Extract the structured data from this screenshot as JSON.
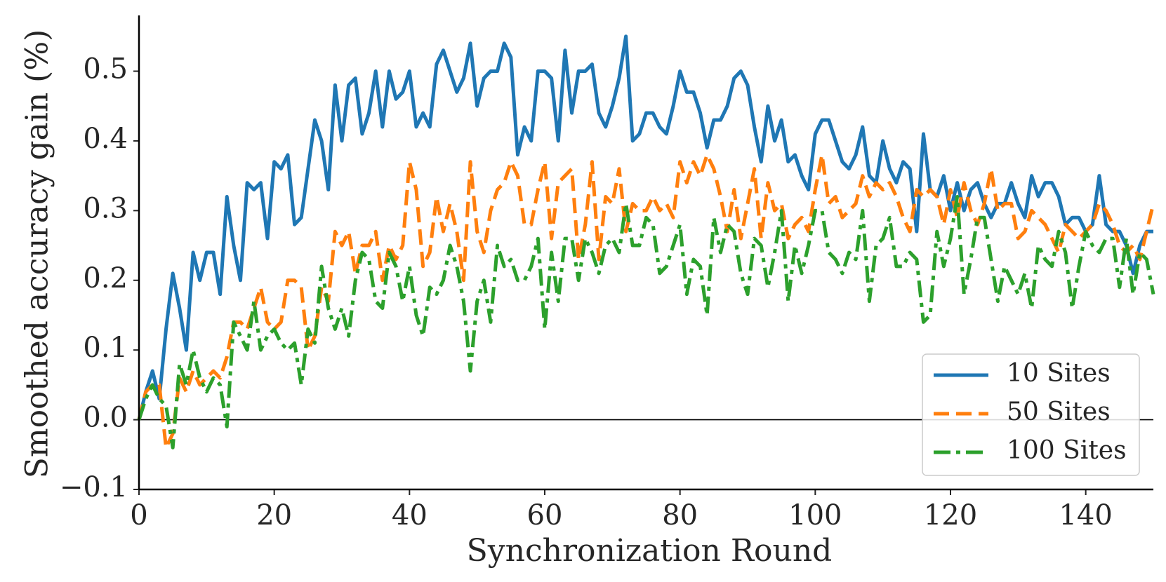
{
  "chart_data": {
    "type": "line",
    "title": "",
    "xlabel": "Synchronization Round",
    "ylabel": "Smoothed accuracy gain (%)",
    "xlim": [
      0,
      150
    ],
    "ylim": [
      -0.1,
      0.58
    ],
    "x_ticks": [
      0,
      20,
      40,
      60,
      80,
      100,
      120,
      140
    ],
    "x_tick_labels": [
      "0",
      "20",
      "40",
      "60",
      "80",
      "100",
      "120",
      "140"
    ],
    "y_ticks": [
      -0.1,
      0.0,
      0.1,
      0.2,
      0.3,
      0.4,
      0.5
    ],
    "y_tick_labels": [
      "−0.1",
      "0.0",
      "0.1",
      "0.2",
      "0.3",
      "0.4",
      "0.5"
    ],
    "grid": false,
    "zero_line": true,
    "legend_position": "lower-right",
    "x": [
      0,
      1,
      2,
      3,
      4,
      5,
      6,
      7,
      8,
      9,
      10,
      11,
      12,
      13,
      14,
      15,
      16,
      17,
      18,
      19,
      20,
      21,
      22,
      23,
      24,
      25,
      26,
      27,
      28,
      29,
      30,
      31,
      32,
      33,
      34,
      35,
      36,
      37,
      38,
      39,
      40,
      41,
      42,
      43,
      44,
      45,
      46,
      47,
      48,
      49,
      50,
      51,
      52,
      53,
      54,
      55,
      56,
      57,
      58,
      59,
      60,
      61,
      62,
      63,
      64,
      65,
      66,
      67,
      68,
      69,
      70,
      71,
      72,
      73,
      74,
      75,
      76,
      77,
      78,
      79,
      80,
      81,
      82,
      83,
      84,
      85,
      86,
      87,
      88,
      89,
      90,
      91,
      92,
      93,
      94,
      95,
      96,
      97,
      98,
      99,
      100,
      101,
      102,
      103,
      104,
      105,
      106,
      107,
      108,
      109,
      110,
      111,
      112,
      113,
      114,
      115,
      116,
      117,
      118,
      119,
      120,
      121,
      122,
      123,
      124,
      125,
      126,
      127,
      128,
      129,
      130,
      131,
      132,
      133,
      134,
      135,
      136,
      137,
      138,
      139,
      140,
      141,
      142,
      143,
      144,
      145,
      146,
      147,
      148,
      149,
      150
    ],
    "series": [
      {
        "name": "10 Sites",
        "color": "#1f77b4",
        "dash": "solid",
        "values": [
          0.0,
          0.04,
          0.07,
          0.03,
          0.13,
          0.21,
          0.16,
          0.1,
          0.24,
          0.2,
          0.24,
          0.24,
          0.18,
          0.32,
          0.25,
          0.2,
          0.34,
          0.33,
          0.34,
          0.26,
          0.37,
          0.36,
          0.38,
          0.28,
          0.29,
          0.36,
          0.43,
          0.4,
          0.33,
          0.48,
          0.4,
          0.48,
          0.49,
          0.41,
          0.44,
          0.5,
          0.42,
          0.5,
          0.46,
          0.47,
          0.5,
          0.42,
          0.44,
          0.42,
          0.51,
          0.53,
          0.5,
          0.47,
          0.49,
          0.54,
          0.45,
          0.49,
          0.5,
          0.5,
          0.54,
          0.52,
          0.38,
          0.42,
          0.4,
          0.5,
          0.5,
          0.49,
          0.4,
          0.53,
          0.44,
          0.5,
          0.5,
          0.51,
          0.44,
          0.42,
          0.45,
          0.49,
          0.55,
          0.4,
          0.41,
          0.44,
          0.44,
          0.42,
          0.41,
          0.45,
          0.5,
          0.47,
          0.47,
          0.44,
          0.39,
          0.43,
          0.43,
          0.45,
          0.49,
          0.5,
          0.48,
          0.42,
          0.37,
          0.45,
          0.4,
          0.43,
          0.37,
          0.38,
          0.35,
          0.33,
          0.41,
          0.43,
          0.43,
          0.4,
          0.37,
          0.36,
          0.38,
          0.42,
          0.35,
          0.34,
          0.4,
          0.36,
          0.34,
          0.37,
          0.36,
          0.27,
          0.41,
          0.33,
          0.32,
          0.35,
          0.3,
          0.34,
          0.3,
          0.33,
          0.34,
          0.31,
          0.29,
          0.31,
          0.31,
          0.34,
          0.31,
          0.29,
          0.35,
          0.32,
          0.34,
          0.34,
          0.32,
          0.28,
          0.29,
          0.29,
          0.27,
          0.28,
          0.35,
          0.28,
          0.27,
          0.27,
          0.25,
          0.21,
          0.25,
          0.27,
          0.27
        ]
      },
      {
        "name": "50 Sites",
        "color": "#ff7f0e",
        "dash": "dashed",
        "values": [
          0.0,
          0.04,
          0.05,
          0.05,
          -0.04,
          -0.02,
          0.06,
          0.04,
          0.07,
          0.05,
          0.06,
          0.07,
          0.06,
          0.09,
          0.14,
          0.14,
          0.13,
          0.16,
          0.19,
          0.14,
          0.13,
          0.14,
          0.2,
          0.2,
          0.19,
          0.1,
          0.12,
          0.19,
          0.17,
          0.27,
          0.25,
          0.27,
          0.21,
          0.25,
          0.25,
          0.27,
          0.2,
          0.25,
          0.23,
          0.25,
          0.37,
          0.33,
          0.22,
          0.24,
          0.32,
          0.27,
          0.31,
          0.27,
          0.2,
          0.37,
          0.27,
          0.24,
          0.3,
          0.33,
          0.34,
          0.37,
          0.35,
          0.28,
          0.28,
          0.33,
          0.37,
          0.26,
          0.34,
          0.35,
          0.36,
          0.23,
          0.28,
          0.37,
          0.23,
          0.32,
          0.31,
          0.36,
          0.27,
          0.31,
          0.3,
          0.3,
          0.32,
          0.3,
          0.31,
          0.29,
          0.37,
          0.34,
          0.37,
          0.35,
          0.38,
          0.36,
          0.32,
          0.27,
          0.33,
          0.26,
          0.31,
          0.36,
          0.26,
          0.34,
          0.3,
          0.31,
          0.26,
          0.28,
          0.29,
          0.27,
          0.33,
          0.38,
          0.31,
          0.32,
          0.29,
          0.3,
          0.31,
          0.35,
          0.32,
          0.34,
          0.33,
          0.34,
          0.32,
          0.29,
          0.27,
          0.33,
          0.32,
          0.33,
          0.32,
          0.28,
          0.33,
          0.29,
          0.34,
          0.3,
          0.28,
          0.31,
          0.36,
          0.3,
          0.31,
          0.31,
          0.26,
          0.27,
          0.3,
          0.29,
          0.28,
          0.26,
          0.24,
          0.28,
          0.27,
          0.26,
          0.27,
          0.28,
          0.31,
          0.3,
          0.28,
          0.25,
          0.24,
          0.25,
          0.23,
          0.27,
          0.31
        ]
      },
      {
        "name": "100 Sites",
        "color": "#2ca02c",
        "dash": "dashdot",
        "values": [
          0.0,
          0.03,
          0.05,
          0.03,
          0.02,
          -0.04,
          0.08,
          0.05,
          0.1,
          0.06,
          0.04,
          0.06,
          0.05,
          -0.01,
          0.14,
          0.12,
          0.1,
          0.17,
          0.1,
          0.12,
          0.13,
          0.11,
          0.1,
          0.11,
          0.05,
          0.13,
          0.11,
          0.22,
          0.16,
          0.13,
          0.16,
          0.12,
          0.2,
          0.24,
          0.23,
          0.17,
          0.16,
          0.24,
          0.22,
          0.17,
          0.22,
          0.15,
          0.12,
          0.19,
          0.18,
          0.2,
          0.25,
          0.22,
          0.17,
          0.07,
          0.17,
          0.2,
          0.14,
          0.25,
          0.22,
          0.23,
          0.2,
          0.2,
          0.22,
          0.26,
          0.13,
          0.24,
          0.17,
          0.26,
          0.26,
          0.2,
          0.26,
          0.24,
          0.21,
          0.25,
          0.26,
          0.24,
          0.31,
          0.25,
          0.25,
          0.29,
          0.28,
          0.21,
          0.22,
          0.25,
          0.28,
          0.18,
          0.23,
          0.22,
          0.15,
          0.29,
          0.24,
          0.28,
          0.27,
          0.21,
          0.18,
          0.26,
          0.25,
          0.19,
          0.24,
          0.3,
          0.17,
          0.25,
          0.21,
          0.25,
          0.3,
          0.3,
          0.24,
          0.23,
          0.21,
          0.24,
          0.23,
          0.3,
          0.17,
          0.25,
          0.26,
          0.29,
          0.22,
          0.22,
          0.24,
          0.23,
          0.14,
          0.15,
          0.27,
          0.22,
          0.26,
          0.32,
          0.18,
          0.23,
          0.29,
          0.29,
          0.23,
          0.17,
          0.22,
          0.2,
          0.18,
          0.21,
          0.16,
          0.25,
          0.23,
          0.22,
          0.27,
          0.24,
          0.16,
          0.22,
          0.27,
          0.25,
          0.24,
          0.26,
          0.26,
          0.19,
          0.26,
          0.18,
          0.24,
          0.23,
          0.18
        ]
      }
    ]
  }
}
